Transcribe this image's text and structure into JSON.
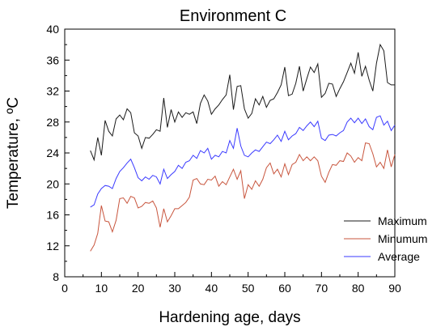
{
  "chart_data": {
    "type": "line",
    "title": "Environment C",
    "xlabel": "Hardening age, days",
    "ylabel": "Temperature, ºC",
    "xlim": [
      0,
      90
    ],
    "ylim": [
      8,
      40
    ],
    "xticks": [
      0,
      10,
      20,
      30,
      40,
      50,
      60,
      70,
      80,
      90
    ],
    "yticks": [
      8,
      12,
      16,
      20,
      24,
      28,
      32,
      36,
      40
    ],
    "grid": false,
    "legend_position": "bottom-right",
    "series": [
      {
        "name": "Maximum",
        "color": "#1a1a1a",
        "x": [
          7,
          8,
          9,
          10,
          11,
          12,
          13,
          14,
          15,
          16,
          17,
          18,
          19,
          20,
          21,
          22,
          23,
          24,
          25,
          26,
          27,
          28,
          29,
          30,
          31,
          32,
          33,
          34,
          35,
          36,
          37,
          38,
          39,
          40,
          41,
          42,
          43,
          44,
          45,
          46,
          47,
          48,
          49,
          50,
          51,
          52,
          53,
          54,
          55,
          56,
          57,
          58,
          59,
          60,
          61,
          62,
          63,
          64,
          65,
          66,
          67,
          68,
          69,
          70,
          71,
          72,
          73,
          74,
          75,
          76,
          77,
          78,
          79,
          80,
          81,
          82,
          83,
          84,
          85,
          86,
          87,
          88,
          89,
          90
        ],
        "y": [
          24.3,
          23.1,
          26.0,
          23.7,
          28.2,
          26.8,
          26.2,
          28.4,
          28.9,
          28.3,
          29.7,
          29.2,
          26.6,
          26.2,
          24.6,
          26.0,
          25.9,
          26.4,
          27.0,
          26.8,
          31.1,
          27.3,
          29.6,
          28.0,
          29.3,
          28.6,
          29.2,
          29.0,
          29.3,
          27.8,
          30.4,
          31.5,
          30.7,
          29.0,
          29.7,
          30.2,
          30.9,
          31.5,
          34.1,
          29.6,
          32.6,
          32.7,
          29.7,
          28.5,
          29.1,
          31.0,
          30.2,
          31.3,
          29.9,
          30.8,
          31.0,
          31.8,
          32.8,
          35.1,
          31.4,
          31.6,
          33.0,
          35.2,
          32.0,
          33.6,
          35.1,
          34.4,
          35.5,
          31.2,
          31.7,
          33.0,
          32.9,
          31.3,
          32.3,
          33.2,
          34.4,
          35.6,
          34.3,
          37.0,
          33.9,
          35.2,
          33.4,
          32.0,
          35.6,
          38.0,
          37.2,
          33.1,
          32.8,
          32.8
        ]
      },
      {
        "name": "Minumum",
        "color": "#c8553d",
        "x": [
          7,
          8,
          9,
          10,
          11,
          12,
          13,
          14,
          15,
          16,
          17,
          18,
          19,
          20,
          21,
          22,
          23,
          24,
          25,
          26,
          27,
          28,
          29,
          30,
          31,
          32,
          33,
          34,
          35,
          36,
          37,
          38,
          39,
          40,
          41,
          42,
          43,
          44,
          45,
          46,
          47,
          48,
          49,
          50,
          51,
          52,
          53,
          54,
          55,
          56,
          57,
          58,
          59,
          60,
          61,
          62,
          63,
          64,
          65,
          66,
          67,
          68,
          69,
          70,
          71,
          72,
          73,
          74,
          75,
          76,
          77,
          78,
          79,
          80,
          81,
          82,
          83,
          84,
          85,
          86,
          87,
          88,
          89,
          90
        ],
        "y": [
          11.3,
          12.1,
          13.6,
          17.2,
          15.2,
          15.1,
          13.8,
          15.3,
          18.1,
          18.2,
          17.5,
          18.4,
          18.2,
          16.9,
          17.1,
          17.6,
          17.5,
          17.8,
          16.9,
          14.4,
          16.8,
          15.1,
          15.9,
          16.8,
          16.8,
          17.2,
          17.6,
          18.3,
          20.5,
          20.7,
          20.0,
          19.9,
          20.6,
          20.5,
          21.0,
          19.7,
          20.3,
          19.9,
          20.9,
          21.9,
          20.6,
          21.7,
          18.1,
          19.9,
          19.3,
          20.4,
          19.7,
          20.6,
          22.1,
          22.7,
          21.3,
          21.9,
          20.9,
          22.6,
          21.2,
          22.5,
          22.8,
          23.8,
          23.0,
          23.5,
          23.0,
          23.5,
          23.0,
          21.0,
          20.2,
          21.5,
          22.5,
          22.4,
          23.0,
          22.9,
          24.0,
          23.6,
          22.8,
          23.4,
          23.0,
          25.3,
          25.2,
          23.9,
          22.2,
          22.8,
          22.0,
          24.4,
          22.2,
          23.8
        ]
      },
      {
        "name": "Average",
        "color": "#3a3aff",
        "x": [
          7,
          8,
          9,
          10,
          11,
          12,
          13,
          14,
          15,
          16,
          17,
          18,
          19,
          20,
          21,
          22,
          23,
          24,
          25,
          26,
          27,
          28,
          29,
          30,
          31,
          32,
          33,
          34,
          35,
          36,
          37,
          38,
          39,
          40,
          41,
          42,
          43,
          44,
          45,
          46,
          47,
          48,
          49,
          50,
          51,
          52,
          53,
          54,
          55,
          56,
          57,
          58,
          59,
          60,
          61,
          62,
          63,
          64,
          65,
          66,
          67,
          68,
          69,
          70,
          71,
          72,
          73,
          74,
          75,
          76,
          77,
          78,
          79,
          80,
          81,
          82,
          83,
          84,
          85,
          86,
          87,
          88,
          89,
          90
        ],
        "y": [
          17.0,
          17.3,
          18.7,
          19.4,
          19.8,
          19.7,
          19.4,
          20.7,
          21.6,
          22.1,
          22.7,
          23.2,
          22.1,
          20.8,
          20.4,
          20.9,
          20.6,
          21.1,
          20.9,
          20.0,
          21.9,
          20.7,
          21.2,
          21.6,
          22.4,
          22.0,
          22.8,
          23.0,
          23.7,
          23.3,
          24.3,
          24.0,
          24.6,
          23.2,
          23.7,
          23.5,
          24.2,
          24.0,
          25.6,
          24.6,
          27.2,
          24.9,
          23.7,
          23.5,
          24.0,
          24.4,
          24.2,
          24.8,
          25.4,
          25.2,
          25.7,
          26.3,
          25.5,
          26.8,
          25.7,
          26.2,
          26.5,
          27.3,
          26.9,
          27.5,
          28.0,
          27.4,
          28.1,
          25.9,
          25.6,
          26.3,
          26.4,
          26.2,
          26.6,
          26.9,
          28.0,
          28.5,
          27.9,
          28.5,
          27.8,
          28.4,
          27.4,
          27.0,
          28.6,
          28.8,
          27.6,
          28.1,
          26.9,
          27.6
        ]
      }
    ]
  }
}
